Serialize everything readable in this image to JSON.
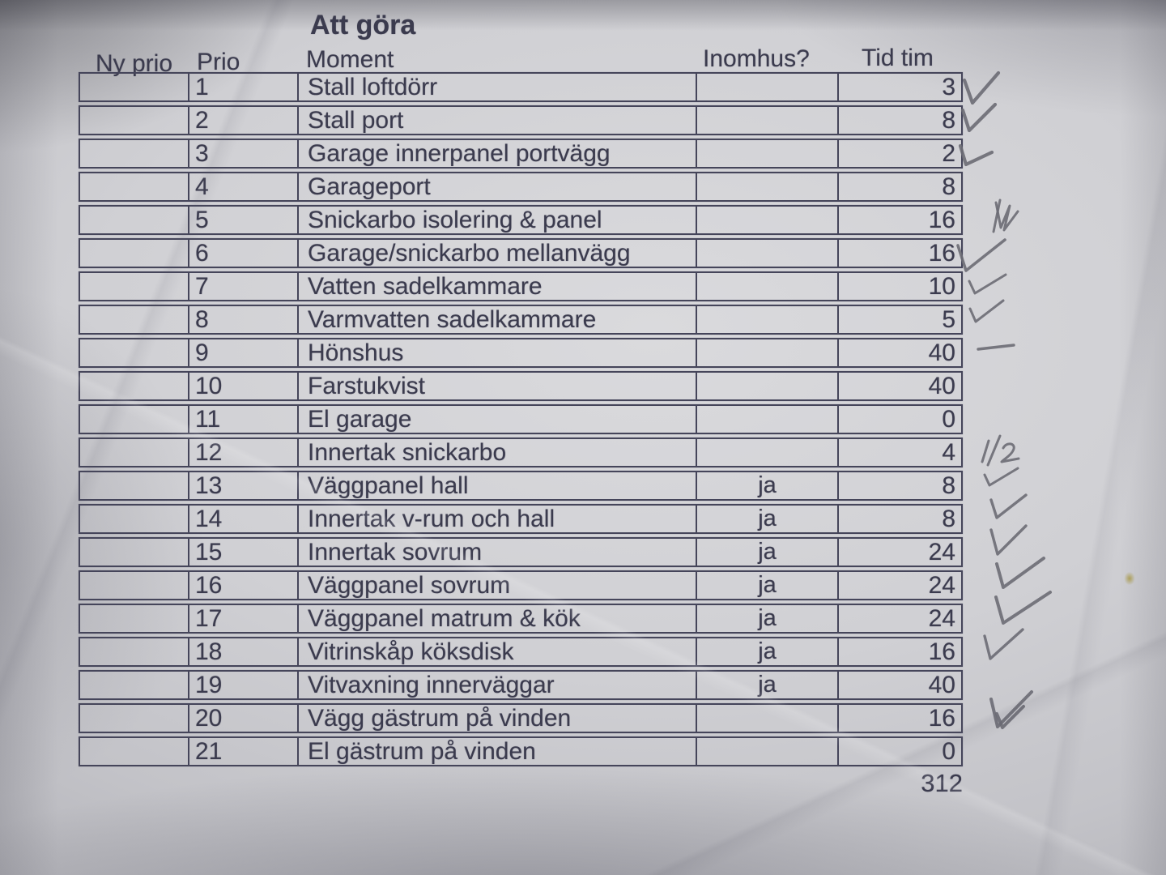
{
  "page": {
    "title": "Att göra"
  },
  "table": {
    "headers": {
      "ny_prio": "Ny prio",
      "prio": "Prio",
      "moment": "Moment",
      "inomhus": "Inomhus?",
      "tid": "Tid tim"
    },
    "rows": [
      {
        "ny_prio": "",
        "prio": "1",
        "moment": "Stall loftdörr",
        "inomhus": "",
        "tid": "3",
        "mark": "check"
      },
      {
        "ny_prio": "",
        "prio": "2",
        "moment": "Stall port",
        "inomhus": "",
        "tid": "8",
        "mark": "check"
      },
      {
        "ny_prio": "",
        "prio": "3",
        "moment": "Garage innerpanel portvägg",
        "inomhus": "",
        "tid": "2",
        "mark": "check"
      },
      {
        "ny_prio": "",
        "prio": "4",
        "moment": "Garageport",
        "inomhus": "",
        "tid": "8",
        "mark": ""
      },
      {
        "ny_prio": "",
        "prio": "5",
        "moment": "Snickarbo isolering & panel",
        "inomhus": "",
        "tid": "16",
        "mark": "scribble-check"
      },
      {
        "ny_prio": "",
        "prio": "6",
        "moment": "Garage/snickarbo mellanvägg",
        "inomhus": "",
        "tid": "16",
        "mark": "check"
      },
      {
        "ny_prio": "",
        "prio": "7",
        "moment": "Vatten sadelkammare",
        "inomhus": "",
        "tid": "10",
        "mark": "check"
      },
      {
        "ny_prio": "",
        "prio": "8",
        "moment": "Varmvatten sadelkammare",
        "inomhus": "",
        "tid": "5",
        "mark": "check"
      },
      {
        "ny_prio": "",
        "prio": "9",
        "moment": "Hönshus",
        "inomhus": "",
        "tid": "40",
        "mark": "dash"
      },
      {
        "ny_prio": "",
        "prio": "10",
        "moment": "Farstukvist",
        "inomhus": "",
        "tid": "40",
        "mark": ""
      },
      {
        "ny_prio": "",
        "prio": "11",
        "moment": "El garage",
        "inomhus": "",
        "tid": "0",
        "mark": ""
      },
      {
        "ny_prio": "",
        "prio": "12",
        "moment": "Innertak snickarbo",
        "inomhus": "",
        "tid": "4",
        "mark": "half"
      },
      {
        "ny_prio": "",
        "prio": "13",
        "moment": "Väggpanel hall",
        "inomhus": "ja",
        "tid": "8",
        "mark": "check"
      },
      {
        "ny_prio": "",
        "prio": "14",
        "moment": "Innertak v-rum och hall",
        "inomhus": "ja",
        "tid": "8",
        "mark": "check"
      },
      {
        "ny_prio": "",
        "prio": "15",
        "moment": "Innertak sovrum",
        "inomhus": "ja",
        "tid": "24",
        "mark": "check"
      },
      {
        "ny_prio": "",
        "prio": "16",
        "moment": "Väggpanel sovrum",
        "inomhus": "ja",
        "tid": "24",
        "mark": "check"
      },
      {
        "ny_prio": "",
        "prio": "17",
        "moment": "Väggpanel matrum & kök",
        "inomhus": "ja",
        "tid": "24",
        "mark": "check"
      },
      {
        "ny_prio": "",
        "prio": "18",
        "moment": "Vitrinskåp köksdisk",
        "inomhus": "ja",
        "tid": "16",
        "mark": "check"
      },
      {
        "ny_prio": "",
        "prio": "19",
        "moment": "Vitvaxning innerväggar",
        "inomhus": "ja",
        "tid": "40",
        "mark": ""
      },
      {
        "ny_prio": "",
        "prio": "20",
        "moment": "Vägg gästrum på vinden",
        "inomhus": "",
        "tid": "16",
        "mark": "double-check"
      },
      {
        "ny_prio": "",
        "prio": "21",
        "moment": "El gästrum på vinden",
        "inomhus": "",
        "tid": "0",
        "mark": ""
      }
    ],
    "total": "312"
  },
  "annotations": {
    "half_mark_text": "1/2"
  },
  "colors": {
    "ink": "#3b3b4e",
    "pencil": "#6b6b74",
    "stain": "#aa9c52"
  }
}
